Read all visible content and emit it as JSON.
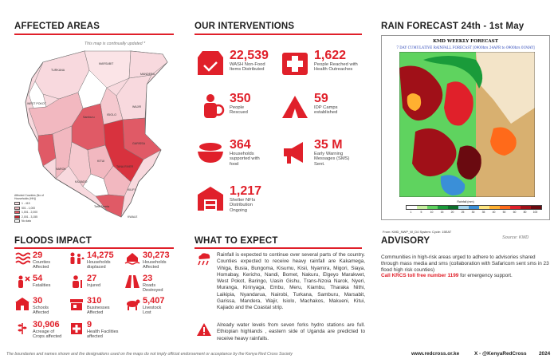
{
  "sections": {
    "affected_areas": "AFFECTED AREAS",
    "floods_impact": "FLOODS IMPACT",
    "our_interventions": "OUR INTERVENTIONS",
    "what_to_expect": "WHAT TO EXPECT",
    "rain_forecast": "RAIN FORECAST 24th - 1st May",
    "advisory": "ADVISORY"
  },
  "map": {
    "note": "This map is continually updated *",
    "counties": [
      {
        "name": "MANDERA",
        "fill": "#f8d9de"
      },
      {
        "name": "MARSABIT",
        "fill": "#fbe4e7"
      },
      {
        "name": "WAJIR",
        "fill": "#f8d9de"
      },
      {
        "name": "TURKANA",
        "fill": "#f8d9de"
      },
      {
        "name": "GARISSA",
        "fill": "#e05a66"
      },
      {
        "name": "TANA RIVER",
        "fill": "#d8323e"
      },
      {
        "name": "KITUI",
        "fill": "#f2b8c0"
      },
      {
        "name": "ISIOLO",
        "fill": "#f5c9cf"
      },
      {
        "name": "KWALE",
        "fill": "#e05a66"
      },
      {
        "name": "KILIFI",
        "fill": "#f2b8c0"
      },
      {
        "name": "Samburu",
        "fill": "#ffffff"
      },
      {
        "name": "Taita Taveta",
        "fill": "#ffffff"
      },
      {
        "name": "NAROK",
        "fill": "#f2b8c0"
      },
      {
        "name": "KAJIADO",
        "fill": "#f5c9cf"
      },
      {
        "name": "WEST POKOT",
        "fill": "#ffffff"
      }
    ],
    "legend": {
      "title": "Affected Counties (No of Households (HH))",
      "items": [
        {
          "label": "1 - 415",
          "color": "#fbe4e7"
        },
        {
          "label": "501 - 1,000",
          "color": "#f2b8c0"
        },
        {
          "label": "1,001 - 2,000",
          "color": "#e05a66"
        },
        {
          "label": "2,001 - 3,155",
          "color": "#c8202c"
        },
        {
          "label": "No data",
          "color": "#ffffff"
        }
      ]
    }
  },
  "impact": [
    {
      "num": "29",
      "label": "Counties Affected",
      "icon": "water-wave-icon"
    },
    {
      "num": "14,275",
      "label": "Households displaced",
      "icon": "displaced-family-icon"
    },
    {
      "num": "30,273",
      "label": "Households Affected",
      "icon": "house-flood-icon"
    },
    {
      "num": "54",
      "label": "Fatalities",
      "icon": "person-cross-icon"
    },
    {
      "num": "27",
      "label": "Injured",
      "icon": "injured-person-icon"
    },
    {
      "num": "23",
      "label": "Roads Destroyed",
      "icon": "road-icon"
    },
    {
      "num": "30",
      "label": "Schools Affected",
      "icon": "school-icon"
    },
    {
      "num": "310",
      "label": "Businesses Affected",
      "icon": "shop-icon"
    },
    {
      "num": "5,407",
      "label": "Livestock Lost",
      "icon": "cow-icon"
    },
    {
      "num": "30,906",
      "label": "Acreage of Crops affected",
      "icon": "crop-icon"
    },
    {
      "num": "9",
      "label": "Health Facilities affected",
      "icon": "health-facility-icon"
    }
  ],
  "interventions": [
    {
      "num": "22,539",
      "label": "WASH Non-Food Items Distributed",
      "icon": "box-icon"
    },
    {
      "num": "1,622",
      "label": "People Reached with Health Outreaches",
      "icon": "medical-cross-icon"
    },
    {
      "num": "350",
      "label": "People Rescued",
      "icon": "rescuer-icon"
    },
    {
      "num": "59",
      "label": "IDP Camps established",
      "icon": "tent-icon"
    },
    {
      "num": "364",
      "label": "Households supported with food",
      "icon": "food-bowl-icon"
    },
    {
      "num": "35 M",
      "label": "Early Warning Messages (SMS) Sent.",
      "icon": "megaphone-icon"
    },
    {
      "num": "1,217",
      "label": "Shelter NFIs Distribution Ongoing",
      "icon": "warehouse-icon"
    }
  ],
  "expect": {
    "p1": "Rainfall is expected to continue over several parts of the country. Counties expected to receive heavy rainfall are Kakamega, Vihiga, Busia, Bungoma, Kisumu, Kisii, Nyamira, Migori, Siaya, Homabay, Kericho, Nandi, Bomet, Nakuru, Elgeyo Marakwet, West Pokot, Baringo, Uasin Gishu, Trans-Nzoia Narok, Nyeri, Muranga, Kirinyaga, Embu, Meru, Kiambu, Tharaka Nithi, Laikipia, Nyandarua, Nairobi, Turkana, Samburu, Marsabit, Garissa, Mandera, Wajir, Isiolo, Machakos, Makueni, Kitui, Kajiado and the Coastal strip.",
    "p2": "Already water levels from seven forks hydro stations are full. Ethiopian highlands , eastern side of Uganda are predicted to receive heavy rainfalls."
  },
  "forecast": {
    "title": "KMD WEEKLY FORECAST",
    "subtitle": "7 DAY CUMULATIVE RAINFALL FORECAST [0900hrs 24APR to 0900hrs 01MAY]",
    "scale_label": "Rainfall (mm)",
    "scale_values": [
      "1",
      "5",
      "10",
      "15",
      "20",
      "25",
      "30",
      "35",
      "40",
      "50",
      "60",
      "80",
      "100"
    ],
    "scale_colors": [
      "#ffffff",
      "#c8f0a0",
      "#5fd35f",
      "#1a9b3a",
      "#0a6e2a",
      "#a8d8f0",
      "#3a8fd8",
      "#ffe680",
      "#ffb030",
      "#ff6a1a",
      "#e0202a",
      "#a01018",
      "#6a0a10"
    ],
    "source_line": "From: KMD_NWP_W_D4  System: Cycle: 15EAT",
    "source": "Source: KMD"
  },
  "advisory": {
    "text": "Communities in high-risk areas urged to adhere to advisories shared through mass media and sms (collaboration with Safaricom sent sms in 23 flood high risk counties)",
    "call_prefix": "Call KRCS toll free number 1199",
    "call_suffix": " for emergency support."
  },
  "footer": {
    "disclaimer": "The boundaries and names shown and the designations used on the maps do not imply official endorsement or acceptance by the Kenya Red Cross Society",
    "website": "www.redcross.or.ke",
    "social": "X - @KenyaRedCross",
    "year": "2024"
  },
  "colors": {
    "accent": "#e0202a",
    "heading": "#1f1f1f"
  }
}
